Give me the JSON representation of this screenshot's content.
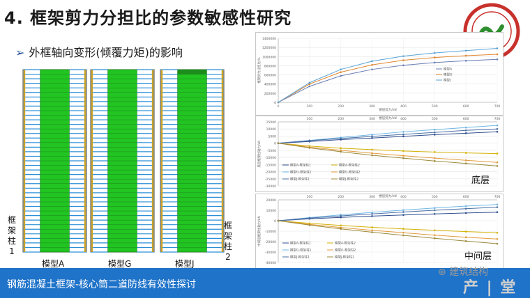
{
  "slide": {
    "title": "4.  框架剪力分担比的参数敏感性研究",
    "subtitle": "外框轴向变形(倾覆力矩)的影响",
    "models": [
      "模型A",
      "模型G",
      "模型J"
    ],
    "left_column_label": "框架柱1",
    "right_column_label": "框架柱2",
    "bottom_bar_text": "钢筋混凝土框架-核心筒二道防线有效性探讨",
    "watermark_wechat": "建筑结构",
    "watermark_big": "产 | 堂"
  },
  "colors": {
    "frame_green": "#22c422",
    "frame_border": "#1a7a1a",
    "bar_blue": "#1f73c9",
    "title_blue": "#1f4e9a"
  },
  "chart_data": [
    {
      "type": "line",
      "xlabel": "楼层剪力/kN",
      "ylabel": "框架剪力分担比/%",
      "xlim": [
        0,
        700
      ],
      "ylim": [
        0,
        1400000
      ],
      "x_ticks": [
        0,
        100,
        200,
        300,
        400,
        500,
        600,
        700
      ],
      "y_ticks": [
        0,
        200000,
        400000,
        600000,
        800000,
        1000000,
        1200000,
        1400000
      ],
      "series": [
        {
          "name": "模型A",
          "color": "#6b7fb5",
          "x": [
            0,
            100,
            200,
            300,
            400,
            500,
            600,
            700
          ],
          "y": [
            0,
            350000,
            580000,
            720000,
            810000,
            870000,
            910000,
            940000
          ]
        },
        {
          "name": "模型G",
          "color": "#e0862e",
          "x": [
            0,
            100,
            200,
            300,
            400,
            500,
            600,
            700
          ],
          "y": [
            0,
            400000,
            660000,
            820000,
            920000,
            980000,
            1020000,
            1050000
          ]
        },
        {
          "name": "模型J",
          "color": "#5aa3d6",
          "x": [
            0,
            100,
            200,
            300,
            400,
            500,
            600,
            700
          ],
          "y": [
            0,
            430000,
            720000,
            900000,
            1010000,
            1080000,
            1130000,
            1180000
          ]
        }
      ]
    },
    {
      "type": "line",
      "tag": "底层",
      "xlabel": "楼层剪力/kN",
      "ylabel": "底层框架柱轴力/kN",
      "xlim": [
        0,
        700
      ],
      "ylim": [
        -30000,
        15000
      ],
      "x_ticks": [
        100,
        200,
        300,
        400,
        500,
        600,
        700
      ],
      "y_ticks": [
        15000,
        10000,
        5000,
        0,
        -5000,
        -10000,
        -15000,
        -20000,
        -25000,
        -30000
      ],
      "series": [
        {
          "name": "模型A-框架柱1",
          "color": "#2f4f8f",
          "x": [
            0,
            100,
            200,
            300,
            400,
            500,
            600,
            700
          ],
          "y": [
            0,
            1200,
            2500,
            3600,
            4800,
            6000,
            7000,
            8000
          ]
        },
        {
          "name": "模型A-框架柱2",
          "color": "#d4b106",
          "x": [
            0,
            100,
            200,
            300,
            400,
            500,
            600,
            700
          ],
          "y": [
            0,
            -2000,
            -3500,
            -4500,
            -5500,
            -6200,
            -6800,
            -7300
          ]
        },
        {
          "name": "模型G-框架柱1",
          "color": "#6fb7e6",
          "x": [
            0,
            100,
            200,
            300,
            400,
            500,
            600,
            700
          ],
          "y": [
            0,
            2000,
            4000,
            6000,
            8000,
            9500,
            11000,
            12500
          ]
        },
        {
          "name": "模型G-框架柱2",
          "color": "#e39b3b",
          "x": [
            0,
            100,
            200,
            300,
            400,
            500,
            600,
            700
          ],
          "y": [
            0,
            -2800,
            -5000,
            -7000,
            -8800,
            -10500,
            -12000,
            -13500
          ]
        },
        {
          "name": "模型J-框架柱1",
          "color": "#4a6fa5",
          "x": [
            0,
            100,
            200,
            300,
            400,
            500,
            600,
            700
          ],
          "y": [
            0,
            1800,
            3300,
            4800,
            6200,
            7600,
            9000,
            10000
          ]
        },
        {
          "name": "模型J-框架柱2",
          "color": "#9c8a3a",
          "x": [
            0,
            100,
            200,
            300,
            400,
            500,
            600,
            700
          ],
          "y": [
            0,
            -3300,
            -6000,
            -8500,
            -10500,
            -12500,
            -14200,
            -16000
          ]
        }
      ],
      "legend_placement": "bottom-left"
    },
    {
      "type": "line",
      "tag": "中间层",
      "xlabel": "楼层剪力/kN",
      "ylabel": "中间层框架柱轴力/kN",
      "xlim": [
        0,
        700
      ],
      "ylim": [
        -40000,
        20000
      ],
      "x_ticks": [
        100,
        200,
        300,
        400,
        500,
        600,
        700
      ],
      "y_ticks": [
        20000,
        10000,
        0,
        -10000,
        -20000,
        -30000,
        -40000
      ],
      "series": [
        {
          "name": "模型A-框架柱1",
          "color": "#2f4f8f",
          "x": [
            0,
            100,
            200,
            300,
            400,
            500,
            600,
            700
          ],
          "y": [
            0,
            1800,
            3200,
            4400,
            5500,
            6500,
            7400,
            8200
          ]
        },
        {
          "name": "模型A-框架柱2",
          "color": "#d4b106",
          "x": [
            0,
            100,
            200,
            300,
            400,
            500,
            600,
            700
          ],
          "y": [
            0,
            -2500,
            -4500,
            -6300,
            -7800,
            -9200,
            -10400,
            -11500
          ]
        },
        {
          "name": "模型G-框架柱1",
          "color": "#6fb7e6",
          "x": [
            0,
            100,
            200,
            300,
            400,
            500,
            600,
            700
          ],
          "y": [
            0,
            3000,
            5600,
            8000,
            10200,
            12200,
            14000,
            15500
          ]
        },
        {
          "name": "模型G-框架柱2",
          "color": "#e39b3b",
          "x": [
            0,
            100,
            200,
            300,
            400,
            500,
            600,
            700
          ],
          "y": [
            0,
            -3500,
            -6500,
            -9200,
            -11500,
            -13800,
            -15800,
            -17500
          ]
        },
        {
          "name": "模型J-框架柱1",
          "color": "#4a6fa5",
          "x": [
            0,
            100,
            200,
            300,
            400,
            500,
            600,
            700
          ],
          "y": [
            0,
            2500,
            4600,
            6500,
            8300,
            10000,
            11500,
            13000
          ]
        },
        {
          "name": "模型J-框架柱2",
          "color": "#9c8a3a",
          "x": [
            0,
            100,
            200,
            300,
            400,
            500,
            600,
            700
          ],
          "y": [
            0,
            -4200,
            -7800,
            -11000,
            -14000,
            -16800,
            -19500,
            -22000
          ]
        }
      ],
      "legend_placement": "bottom-left"
    }
  ]
}
